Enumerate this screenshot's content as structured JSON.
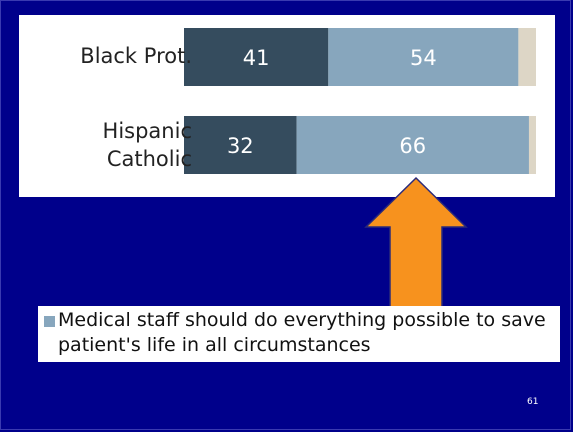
{
  "colors": {
    "background": "#00008b",
    "series_dark": "#354c5e",
    "series_light": "#87a6bd",
    "series_rest": "#ddd6c6",
    "arrow": "#f7921e",
    "arrow_outline": "#2a2a7a"
  },
  "chart_data": {
    "type": "bar",
    "orientation": "horizontal",
    "stacked": true,
    "categories": [
      "Black Prot.",
      "Hispanic\nCatholic"
    ],
    "series": [
      {
        "values": [
          41,
          32
        ],
        "labels": [
          "41",
          "32"
        ]
      },
      {
        "name": "Medical staff should do everything possible to save patient's life in all circumstances",
        "values": [
          54,
          66
        ],
        "labels": [
          "54",
          "66"
        ]
      },
      {
        "values": [
          5,
          2
        ]
      }
    ],
    "xlim": [
      0,
      100
    ],
    "grid": false
  },
  "legend": {
    "text": "Medical staff should do everything possible to save patient's life in all circumstances"
  },
  "annotation": {
    "icon": "up-arrow-icon"
  },
  "slide": {
    "page_number": "61"
  }
}
